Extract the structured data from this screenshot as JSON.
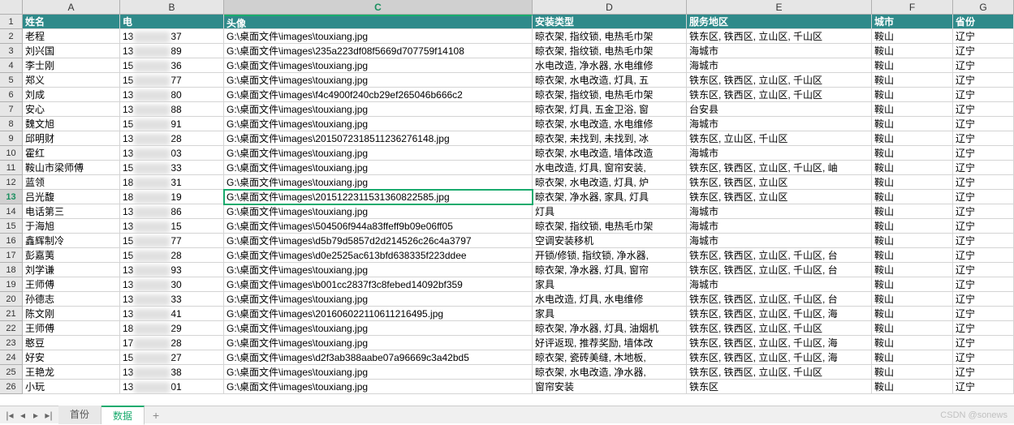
{
  "columns": [
    "A",
    "B",
    "C",
    "D",
    "E",
    "F",
    "G"
  ],
  "active_col_index": 2,
  "active_row_num": 13,
  "headers": {
    "A": "姓名",
    "B": "电",
    "C": "头像",
    "D": "安装类型",
    "E": "服务地区",
    "F": "城市",
    "G": "省份"
  },
  "rows": [
    {
      "n": 2,
      "A": "老程",
      "B1": "13",
      "B2": "37",
      "C": "G:\\桌面文件\\images\\touxiang.jpg",
      "D": "晾衣架, 指纹锁, 电热毛巾架",
      "E": "铁东区, 铁西区, 立山区, 千山区",
      "F": "鞍山",
      "G": "辽宁"
    },
    {
      "n": 3,
      "A": "刘兴国",
      "B1": "13",
      "B2": "89",
      "C": "G:\\桌面文件\\images\\235a223df08f5669d707759f14108",
      "D": "晾衣架, 指纹锁, 电热毛巾架",
      "E": "海城市",
      "F": "鞍山",
      "G": "辽宁"
    },
    {
      "n": 4,
      "A": "李士刚",
      "B1": "15",
      "B2": "36",
      "C": "G:\\桌面文件\\images\\touxiang.jpg",
      "D": "水电改造, 净水器, 水电维修",
      "E": "海城市",
      "F": "鞍山",
      "G": "辽宁"
    },
    {
      "n": 5,
      "A": "郑义",
      "B1": "15",
      "B2": "77",
      "C": "G:\\桌面文件\\images\\touxiang.jpg",
      "D": "晾衣架, 水电改造, 灯具, 五",
      "E": "铁东区, 铁西区, 立山区, 千山区",
      "F": "鞍山",
      "G": "辽宁"
    },
    {
      "n": 6,
      "A": "刘成",
      "B1": "13",
      "B2": "80",
      "C": "G:\\桌面文件\\images\\f4c4900f240cb29ef265046b666c2",
      "D": "晾衣架, 指纹锁, 电热毛巾架",
      "E": "铁东区, 铁西区, 立山区, 千山区",
      "F": "鞍山",
      "G": "辽宁"
    },
    {
      "n": 7,
      "A": "安心",
      "B1": "13",
      "B2": "88",
      "C": "G:\\桌面文件\\images\\touxiang.jpg",
      "D": "晾衣架, 灯具, 五金卫浴, 窗",
      "E": "台安县",
      "F": "鞍山",
      "G": "辽宁"
    },
    {
      "n": 8,
      "A": "魏文旭",
      "B1": "15",
      "B2": "91",
      "C": "G:\\桌面文件\\images\\touxiang.jpg",
      "D": "晾衣架, 水电改造, 水电维修",
      "E": "海城市",
      "F": "鞍山",
      "G": "辽宁"
    },
    {
      "n": 9,
      "A": "邱明财",
      "B1": "13",
      "B2": "28",
      "C": "G:\\桌面文件\\images\\20150723185112362761​48.jpg",
      "D": "晾衣架, 未找到, 未找到, 冰",
      "E": "铁东区, 立山区, 千山区",
      "F": "鞍山",
      "G": "辽宁"
    },
    {
      "n": 10,
      "A": "霍红",
      "B1": "13",
      "B2": "03",
      "C": "G:\\桌面文件\\images\\touxiang.jpg",
      "D": "晾衣架, 水电改造, 墙体改造",
      "E": "海城市",
      "F": "鞍山",
      "G": "辽宁"
    },
    {
      "n": 11,
      "A": "鞍山市梁师傅",
      "B1": "15",
      "B2": "33",
      "C": "G:\\桌面文件\\images\\touxiang.jpg",
      "D": "水电改造, 灯具, 窗帘安装, ",
      "E": "铁东区, 铁西区, 立山区, 千山区, 岫",
      "F": "鞍山",
      "G": "辽宁"
    },
    {
      "n": 12,
      "A": "蓝领",
      "B1": "18",
      "B2": "31",
      "C": "G:\\桌面文件\\images\\touxiang.jpg",
      "D": "晾衣架, 水电改造, 灯具, 炉",
      "E": "铁东区, 铁西区, 立山区",
      "F": "鞍山",
      "G": "辽宁"
    },
    {
      "n": 13,
      "A": "吕光馥",
      "B1": "18",
      "B2": "19",
      "C": "G:\\桌面文件\\images\\20151223115313608225​85.jpg",
      "D": "晾衣架, 净水器, 家具, 灯具",
      "E": "铁东区, 铁西区, 立山区",
      "F": "鞍山",
      "G": "辽宁"
    },
    {
      "n": 14,
      "A": "电话第三",
      "B1": "13",
      "B2": "86",
      "C": "G:\\桌面文件\\images\\touxiang.jpg",
      "D": "灯具",
      "E": "海城市",
      "F": "鞍山",
      "G": "辽宁"
    },
    {
      "n": 15,
      "A": "于海旭",
      "B1": "13",
      "B2": "15",
      "C": "G:\\桌面文件\\images\\504506f944a83ffeff9b09e06ff05",
      "D": "晾衣架, 指纹锁, 电热毛巾架",
      "E": "海城市",
      "F": "鞍山",
      "G": "辽宁"
    },
    {
      "n": 16,
      "A": "鑫辉制冷",
      "B1": "15",
      "B2": "77",
      "C": "G:\\桌面文件\\images\\d5b79d5857d2d214526c26c4a3797",
      "D": "空调安装移机",
      "E": "海城市",
      "F": "鞍山",
      "G": "辽宁"
    },
    {
      "n": 17,
      "A": "彭嘉荑",
      "B1": "15",
      "B2": "28",
      "C": "G:\\桌面文件\\images\\d0e2525ac613bfd638335f223ddee",
      "D": "开锁/修锁, 指纹锁, 净水器,",
      "E": "铁东区, 铁西区, 立山区, 千山区, 台",
      "F": "鞍山",
      "G": "辽宁"
    },
    {
      "n": 18,
      "A": "刘学谦",
      "B1": "13",
      "B2": "93",
      "C": "G:\\桌面文件\\images\\touxiang.jpg",
      "D": "晾衣架, 净水器, 灯具, 窗帘",
      "E": "铁东区, 铁西区, 立山区, 千山区, 台",
      "F": "鞍山",
      "G": "辽宁"
    },
    {
      "n": 19,
      "A": "王师傅",
      "B1": "13",
      "B2": "30",
      "C": "G:\\桌面文件\\images\\b001cc2837f3c8febed14092bf359",
      "D": "家具",
      "E": "海城市",
      "F": "鞍山",
      "G": "辽宁"
    },
    {
      "n": 20,
      "A": "孙德志",
      "B1": "13",
      "B2": "33",
      "C": "G:\\桌面文件\\images\\touxiang.jpg",
      "D": "水电改造, 灯具, 水电维修",
      "E": "铁东区, 铁西区, 立山区, 千山区, 台",
      "F": "鞍山",
      "G": "辽宁"
    },
    {
      "n": 21,
      "A": "陈文刚",
      "B1": "13",
      "B2": "41",
      "C": "G:\\桌面文件\\images\\20160602211061121649​5.jpg",
      "D": "家具",
      "E": "铁东区, 铁西区, 立山区, 千山区, 海",
      "F": "鞍山",
      "G": "辽宁"
    },
    {
      "n": 22,
      "A": "王师傅",
      "B1": "18",
      "B2": "29",
      "C": "G:\\桌面文件\\images\\touxiang.jpg",
      "D": "晾衣架, 净水器, 灯具, 油烟机",
      "E": "铁东区, 铁西区, 立山区, 千山区",
      "F": "鞍山",
      "G": "辽宁"
    },
    {
      "n": 23,
      "A": "憨豆",
      "B1": "17",
      "B2": "28",
      "C": "G:\\桌面文件\\images\\touxiang.jpg",
      "D": "好评返现, 推荐奖励, 墙体改",
      "E": "铁东区, 铁西区, 立山区, 千山区, 海",
      "F": "鞍山",
      "G": "辽宁"
    },
    {
      "n": 24,
      "A": "好安",
      "B1": "15",
      "B2": "27",
      "C": "G:\\桌面文件\\images\\d2f3ab388aabe07a96669c3a42bd5",
      "D": "晾衣架, 瓷砖美缝, 木地板, ",
      "E": "铁东区, 铁西区, 立山区, 千山区, 海",
      "F": "鞍山",
      "G": "辽宁"
    },
    {
      "n": 25,
      "A": "王艳龙",
      "B1": "13",
      "B2": "38",
      "C": "G:\\桌面文件\\images\\touxiang.jpg",
      "D": "晾衣架, 水电改造, 净水器, ",
      "E": "铁东区, 铁西区, 立山区, 千山区",
      "F": "鞍山",
      "G": "辽宁"
    },
    {
      "n": 26,
      "A": "小玩",
      "B1": "13",
      "B2": "01",
      "C": "G:\\桌面文件\\images\\touxiang.jpg",
      "D": "窗帘安装",
      "E": "铁东区",
      "F": "鞍山",
      "G": "辽宁"
    }
  ],
  "tabs": {
    "items": [
      {
        "label": "首份",
        "active": false
      },
      {
        "label": "数据",
        "active": true
      }
    ],
    "add": "+"
  },
  "watermark": "CSDN @sonews",
  "colors": {
    "header_bg": "#2f8a8a",
    "header_fg": "#ffffff",
    "active_border": "#1aab6e",
    "grid_line": "#d4d4d4",
    "col_header_bg": "#e6e6e6"
  }
}
